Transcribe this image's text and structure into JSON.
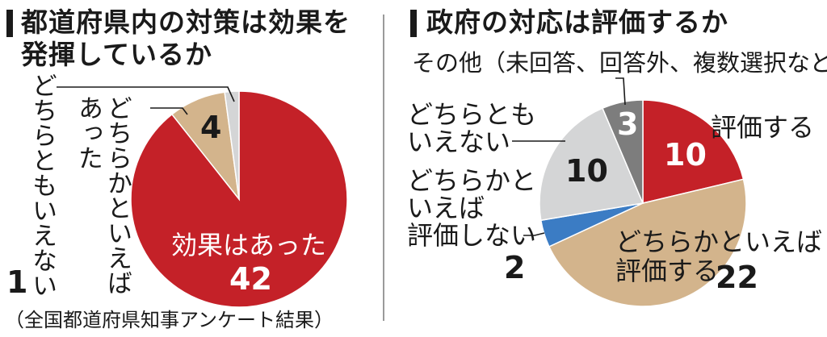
{
  "left": {
    "title_line1": "都道府県内の対策は効果を",
    "title_line2": "発揮しているか"
  },
  "right": {
    "title_line1": "政府の対応は評価するか"
  },
  "source_note": "（全国都道府県知事アンケート結果）",
  "colors": {
    "red": "#c42128",
    "tan": "#d3b48c",
    "gray_light": "#d4d5d6",
    "gray_dark": "#7d7d7d",
    "blue": "#3b7cc4",
    "bar": "#1a1a1a"
  },
  "chart_data": [
    {
      "type": "pie",
      "title": "都道府県内の対策は効果を発揮しているか",
      "slices": [
        {
          "label_lines": [
            "効果はあった"
          ],
          "value": 42,
          "value_text": "42",
          "color": "#c42128"
        },
        {
          "label_lines": [
            "どちらかといえば",
            "あった"
          ],
          "value": 4,
          "value_text": "4",
          "color": "#d3b48c"
        },
        {
          "label_lines": [
            "どちらともいえない"
          ],
          "value": 1,
          "value_text": "1",
          "color": "#d4d5d6"
        }
      ]
    },
    {
      "type": "pie",
      "title": "政府の対応は評価するか",
      "slices": [
        {
          "label_lines": [
            "評価する"
          ],
          "value": 10,
          "value_text": "10",
          "color": "#c42128"
        },
        {
          "label_lines": [
            "どちらかといえば",
            "評価する"
          ],
          "value": 22,
          "value_text": "22",
          "color": "#d3b48c"
        },
        {
          "label_lines": [
            "どちらかと",
            "いえば",
            "評価しない"
          ],
          "value": 2,
          "value_text": "2",
          "color": "#3b7cc4"
        },
        {
          "label_lines": [
            "どちらとも",
            "いえない"
          ],
          "value": 10,
          "value_text": "10",
          "color": "#d4d5d6"
        },
        {
          "label_lines": [
            "その他（未回答、回答外、複数選択など）"
          ],
          "value": 3,
          "value_text": "3",
          "color": "#7d7d7d"
        }
      ]
    }
  ]
}
